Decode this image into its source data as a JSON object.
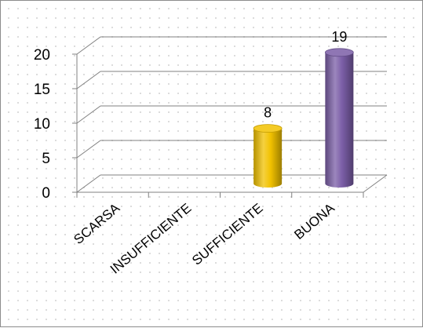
{
  "chart_data": {
    "type": "bar",
    "style": "3d-cylinder",
    "categories": [
      "SCARSA",
      "INSUFFICIENTE",
      "SUFFICIENTE",
      "BUONA"
    ],
    "values": [
      0,
      0,
      8,
      19
    ],
    "data_labels": [
      "",
      "",
      "8",
      "19"
    ],
    "bar_colors": [
      "#f2c200",
      "#f2c200",
      "#f2c200",
      "#7b5ea7"
    ],
    "title": "",
    "xlabel": "",
    "ylabel": "",
    "ylim": [
      0,
      20
    ],
    "yticks": [
      0,
      5,
      10,
      15,
      20
    ],
    "grid": true,
    "legend": "none"
  }
}
